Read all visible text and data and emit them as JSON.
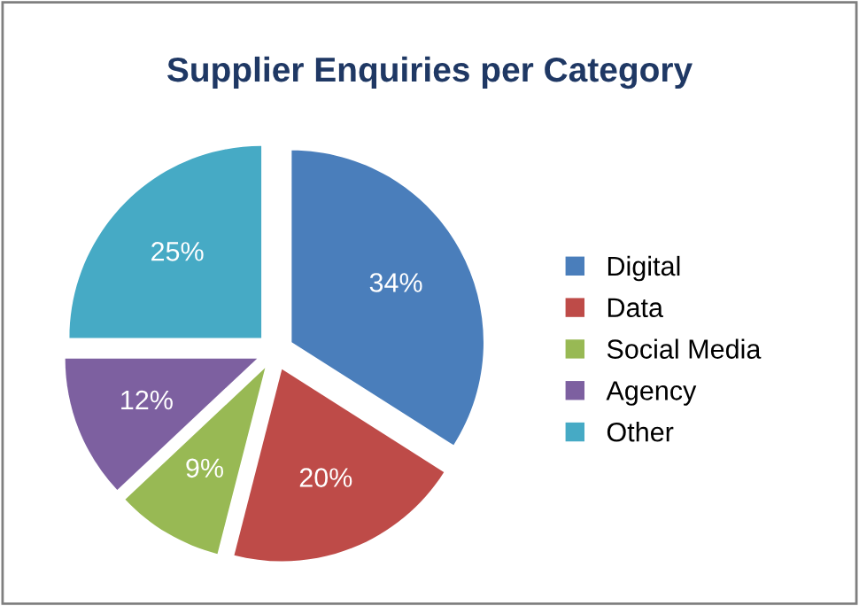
{
  "chart_data": {
    "type": "pie",
    "title": "Supplier Enquiries per Category",
    "categories": [
      "Digital",
      "Data",
      "Social Media",
      "Agency",
      "Other"
    ],
    "values": [
      34,
      20,
      9,
      12,
      25
    ],
    "value_labels": [
      "34%",
      "20%",
      "9%",
      "12%",
      "25%"
    ],
    "colors": [
      "#4a7ebb",
      "#be4b48",
      "#98b954",
      "#7d60a0",
      "#46aac5"
    ],
    "legend": "right"
  }
}
